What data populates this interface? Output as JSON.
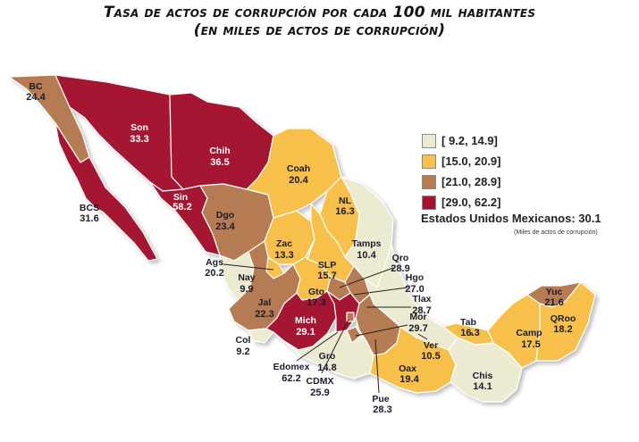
{
  "title": {
    "line1": "Tasa de actos de corrupción por cada 100 mil habitantes",
    "line2": "(en miles de actos de corrupción)"
  },
  "legend": [
    {
      "label": "[ 9.2, 14.9]",
      "color": "#ecebd2"
    },
    {
      "label": "[15.0, 20.9]",
      "color": "#f7c04c"
    },
    {
      "label": "[21.0, 28.9]",
      "color": "#b57c52"
    },
    {
      "label": "[29.0, 62.2]",
      "color": "#a51331"
    }
  ],
  "national": {
    "label": "Estados Unidos Mexicanos: 30.1",
    "note": "(Miles de actos de corrupción)"
  },
  "states": {
    "bc": {
      "name": "BC",
      "value": "24.4"
    },
    "bcs": {
      "name": "BCS",
      "value": "31.6"
    },
    "son": {
      "name": "Son",
      "value": "33.3"
    },
    "chih": {
      "name": "Chih",
      "value": "36.5"
    },
    "sin": {
      "name": "Sin",
      "value": "58.2"
    },
    "dgo": {
      "name": "Dgo",
      "value": "23.4"
    },
    "coah": {
      "name": "Coah",
      "value": "20.4"
    },
    "nl": {
      "name": "NL",
      "value": "16.3"
    },
    "tamps": {
      "name": "Tamps",
      "value": "10.4"
    },
    "zac": {
      "name": "Zac",
      "value": "13.3"
    },
    "slp": {
      "name": "SLP",
      "value": "15.7"
    },
    "ags": {
      "name": "Ags",
      "value": "20.2"
    },
    "nay": {
      "name": "Nay",
      "value": "9.9"
    },
    "jal": {
      "name": "Jal",
      "value": "22.3"
    },
    "gto": {
      "name": "Gto",
      "value": "17.3"
    },
    "qro": {
      "name": "Qro",
      "value": "28.9"
    },
    "hgo": {
      "name": "Hgo",
      "value": "27.0"
    },
    "tlax": {
      "name": "Tlax",
      "value": "28.7"
    },
    "mor": {
      "name": "Mor",
      "value": "29.7"
    },
    "mich": {
      "name": "Mich",
      "value": "29.1"
    },
    "col": {
      "name": "Col",
      "value": "9.2"
    },
    "edomex": {
      "name": "Edomex",
      "value": "62.2"
    },
    "cdmx": {
      "name": "CDMX",
      "value": "25.9"
    },
    "gro": {
      "name": "Gro",
      "value": "14.8"
    },
    "pue": {
      "name": "Pue",
      "value": "28.3"
    },
    "oax": {
      "name": "Oax",
      "value": "19.4"
    },
    "ver": {
      "name": "Ver",
      "value": "10.5"
    },
    "tab": {
      "name": "Tab",
      "value": "16.3"
    },
    "chis": {
      "name": "Chis",
      "value": "14.1"
    },
    "camp": {
      "name": "Camp",
      "value": "17.5"
    },
    "yuc": {
      "name": "Yuc",
      "value": "21.6"
    },
    "qroo": {
      "name": "QRoo",
      "value": "18.2"
    }
  }
}
